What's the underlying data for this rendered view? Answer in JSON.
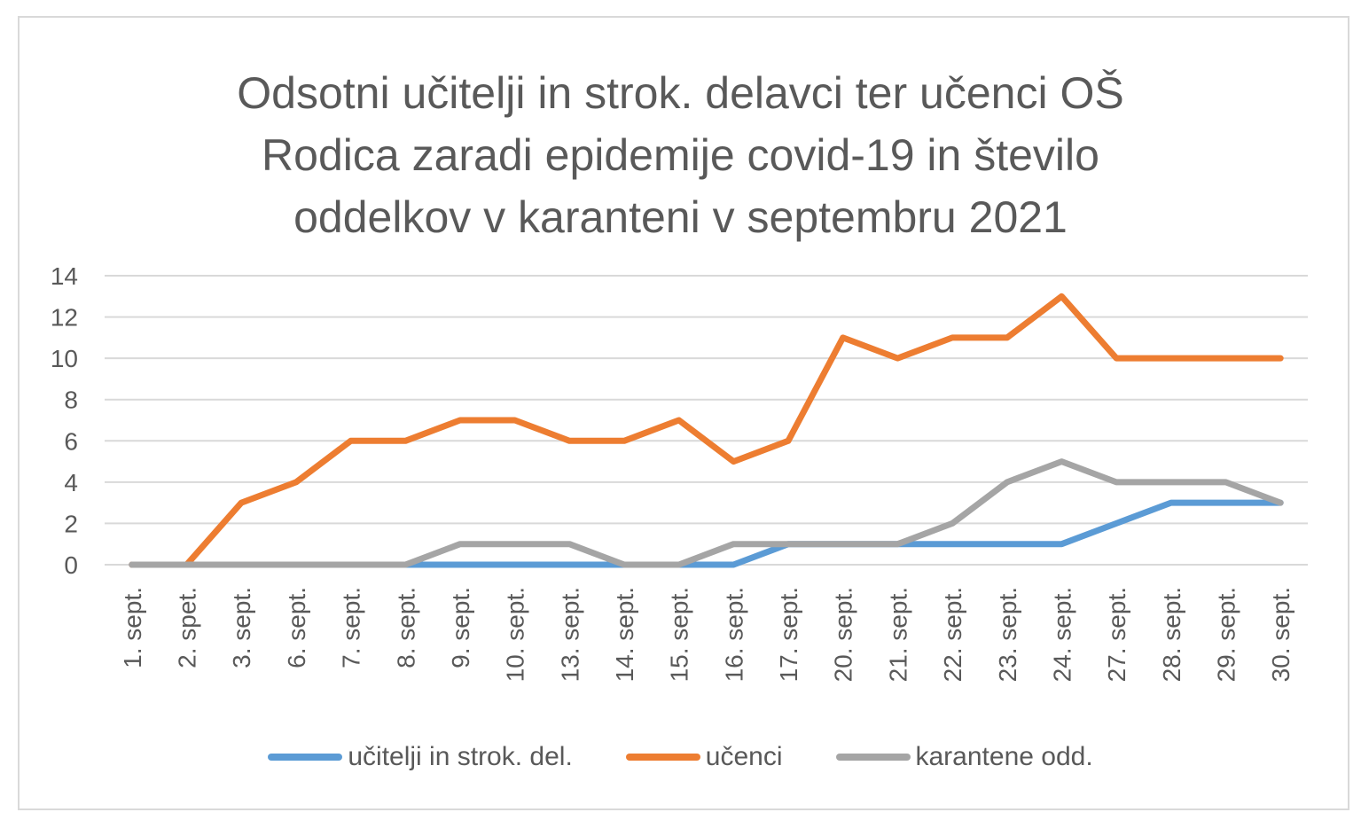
{
  "chart_data": {
    "type": "line",
    "title_lines": [
      "Odsotni učitelji in strok. delavci ter učenci OŠ",
      "Rodica zaradi epidemije covid-19 in število",
      "oddelkov v karanteni v septembru 2021"
    ],
    "categories": [
      "1. sept.",
      "2. spet.",
      "3. sept.",
      "6. sept.",
      "7. sept.",
      "8. sept.",
      "9. sept.",
      "10. sept.",
      "13. sept.",
      "14. sept.",
      "15. sept.",
      "16. sept.",
      "17. sept.",
      "20. sept.",
      "21. sept.",
      "22. sept.",
      "23. sept.",
      "24. sept.",
      "27. sept.",
      "28. sept.",
      "29. sept.",
      "30. sept."
    ],
    "ylim": [
      0,
      14
    ],
    "yticks": [
      0,
      2,
      4,
      6,
      8,
      10,
      12,
      14
    ],
    "grid": true,
    "legend_position": "bottom",
    "series": [
      {
        "name": "učitelji in strok. del.",
        "color": "#5b9bd5",
        "values": [
          0,
          0,
          0,
          0,
          0,
          0,
          0,
          0,
          0,
          0,
          0,
          0,
          1,
          1,
          1,
          1,
          1,
          1,
          2,
          3,
          3,
          3
        ]
      },
      {
        "name": "učenci",
        "color": "#ed7d31",
        "values": [
          0,
          0,
          3,
          4,
          6,
          6,
          7,
          7,
          6,
          6,
          7,
          5,
          6,
          11,
          10,
          11,
          11,
          13,
          10,
          10,
          10,
          10
        ]
      },
      {
        "name": "karantene odd.",
        "color": "#a5a5a5",
        "values": [
          0,
          0,
          0,
          0,
          0,
          0,
          1,
          1,
          1,
          0,
          0,
          1,
          1,
          1,
          1,
          2,
          4,
          5,
          4,
          4,
          4,
          3
        ]
      }
    ]
  }
}
